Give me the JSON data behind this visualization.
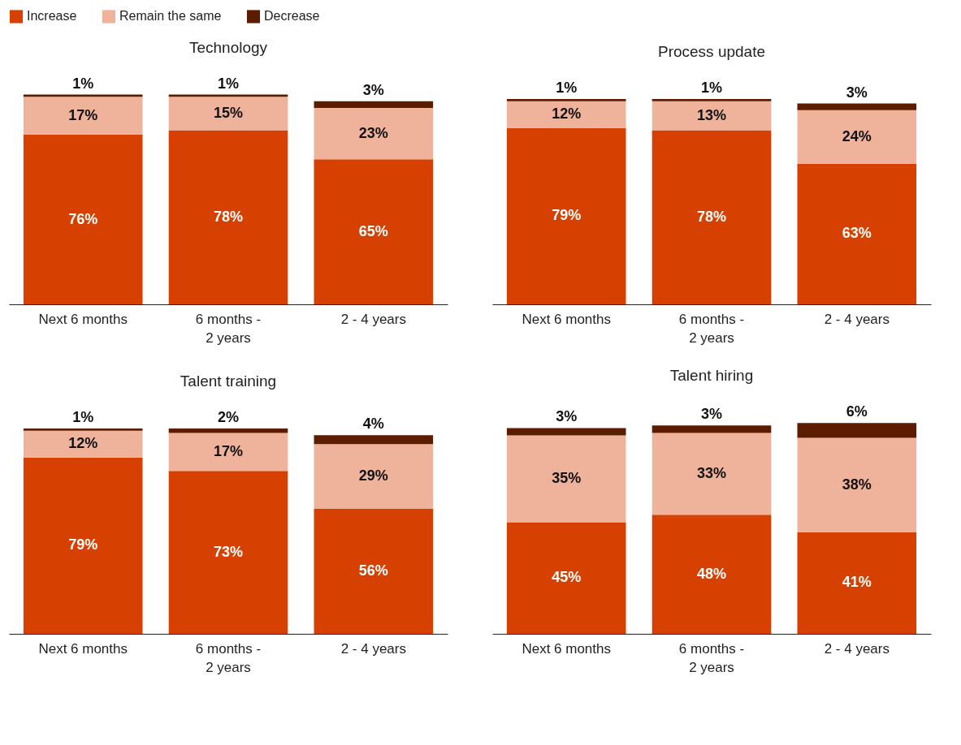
{
  "chart_data": [
    {
      "type": "bar",
      "title": "Technology",
      "stacked": true,
      "legend": "top left",
      "categories": [
        "Next 6 months",
        "6 months - 2 years",
        "2 - 4 years"
      ],
      "series": [
        {
          "name": "Increase",
          "color": "#d64000",
          "values": [
            76,
            78,
            65
          ],
          "value_labels": [
            "76%",
            "78%",
            "65%"
          ]
        },
        {
          "name": "Remain the same",
          "color": "#efb29a",
          "values": [
            17,
            15,
            23
          ],
          "value_labels": [
            "17%",
            "15%",
            "23%"
          ]
        },
        {
          "name": "Decrease",
          "color": "#5c1c00",
          "values": [
            1,
            1,
            3
          ],
          "value_labels": [
            "1%",
            "1%",
            "3%"
          ]
        }
      ]
    },
    {
      "type": "bar",
      "title": "Process update",
      "stacked": true,
      "categories": [
        "Next 6 months",
        "6 months - 2 years",
        "2 - 4 years"
      ],
      "series": [
        {
          "name": "Increase",
          "color": "#d64000",
          "values": [
            79,
            78,
            63
          ],
          "value_labels": [
            "79%",
            "78%",
            "63%"
          ]
        },
        {
          "name": "Remain the same",
          "color": "#efb29a",
          "values": [
            12,
            13,
            24
          ],
          "value_labels": [
            "12%",
            "13%",
            "24%"
          ]
        },
        {
          "name": "Decrease",
          "color": "#5c1c00",
          "values": [
            1,
            1,
            3
          ],
          "value_labels": [
            "1%",
            "1%",
            "3%"
          ]
        }
      ]
    },
    {
      "type": "bar",
      "title": "Talent training",
      "stacked": true,
      "categories": [
        "Next 6 months",
        "6 months - 2 years",
        "2 - 4 years"
      ],
      "series": [
        {
          "name": "Increase",
          "color": "#d64000",
          "values": [
            79,
            73,
            56
          ],
          "value_labels": [
            "79%",
            "73%",
            "56%"
          ]
        },
        {
          "name": "Remain the same",
          "color": "#efb29a",
          "values": [
            12,
            17,
            29
          ],
          "value_labels": [
            "12%",
            "17%",
            "29%"
          ]
        },
        {
          "name": "Decrease",
          "color": "#5c1c00",
          "values": [
            1,
            2,
            4
          ],
          "value_labels": [
            "1%",
            "2%",
            "4%"
          ]
        }
      ]
    },
    {
      "type": "bar",
      "title": "Talent hiring",
      "stacked": true,
      "categories": [
        "Next 6 months",
        "6 months - 2 years",
        "2 - 4 years"
      ],
      "series": [
        {
          "name": "Increase",
          "color": "#d64000",
          "values": [
            45,
            48,
            41
          ],
          "value_labels": [
            "45%",
            "48%",
            "41%"
          ]
        },
        {
          "name": "Remain the same",
          "color": "#efb29a",
          "values": [
            35,
            33,
            38
          ],
          "value_labels": [
            "35%",
            "33%",
            "38%"
          ]
        },
        {
          "name": "Decrease",
          "color": "#5c1c00",
          "values": [
            3,
            3,
            6
          ],
          "value_labels": [
            "3%",
            "3%",
            "6%"
          ]
        }
      ]
    }
  ]
}
